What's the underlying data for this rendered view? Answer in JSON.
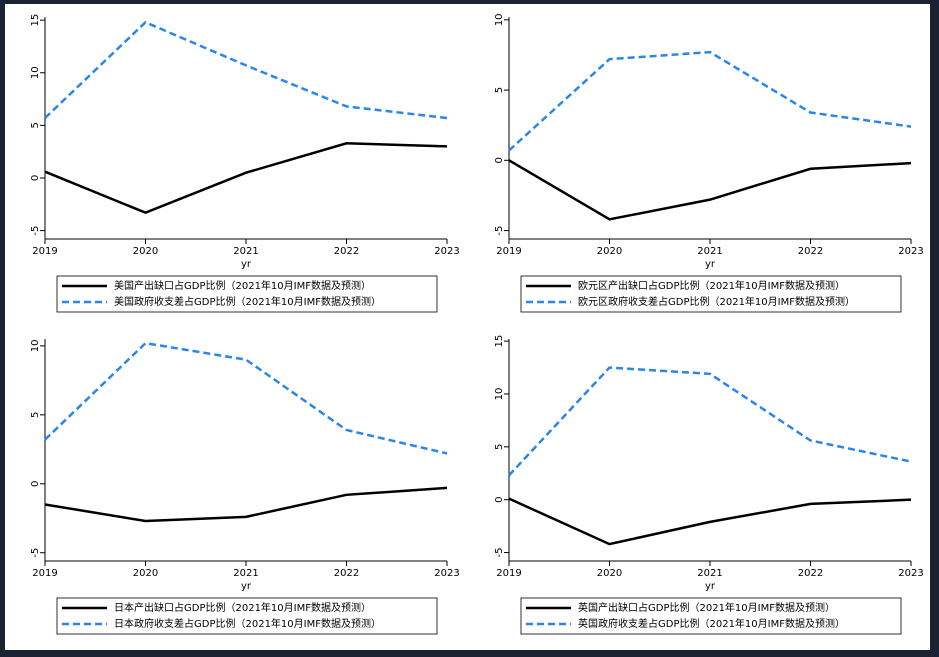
{
  "chart_data": [
    {
      "type": "line",
      "x": [
        2019,
        2020,
        2021,
        2022,
        2023
      ],
      "xlim": [
        2019,
        2023
      ],
      "xticks": [
        2019,
        2020,
        2021,
        2022,
        2023
      ],
      "xlabel": "yr",
      "ylim": [
        -5.8,
        15.3
      ],
      "yticks": [
        -5,
        0,
        5,
        10,
        15
      ],
      "series": [
        {
          "name": "美国产出缺口占GDP比例（2021年10月IMF数据及预测）",
          "color": "#000000",
          "dash": false,
          "values": [
            0.6,
            -3.3,
            0.5,
            3.3,
            3.0
          ]
        },
        {
          "name": "美国政府收支差占GDP比例（2021年10月IMF数据及预测）",
          "color": "#2a86e8",
          "dash": true,
          "values": [
            5.7,
            14.8,
            10.7,
            6.8,
            5.7
          ]
        }
      ]
    },
    {
      "type": "line",
      "x": [
        2019,
        2020,
        2021,
        2022,
        2023
      ],
      "xlim": [
        2019,
        2023
      ],
      "xticks": [
        2019,
        2020,
        2021,
        2022,
        2023
      ],
      "xlabel": "yr",
      "ylim": [
        -5.6,
        10.2
      ],
      "yticks": [
        -5,
        0,
        5,
        10
      ],
      "series": [
        {
          "name": "欧元区产出缺口占GDP比例（2021年10月IMF数据及预测）",
          "color": "#000000",
          "dash": false,
          "values": [
            0.0,
            -4.2,
            -2.8,
            -0.6,
            -0.2
          ]
        },
        {
          "name": "欧元区政府收支差占GDP比例（2021年10月IMF数据及预测）",
          "color": "#2a86e8",
          "dash": true,
          "values": [
            0.7,
            7.2,
            7.7,
            3.4,
            2.4
          ]
        }
      ]
    },
    {
      "type": "line",
      "x": [
        2019,
        2020,
        2021,
        2022,
        2023
      ],
      "xlim": [
        2019,
        2023
      ],
      "xticks": [
        2019,
        2020,
        2021,
        2022,
        2023
      ],
      "xlabel": "yr",
      "ylim": [
        -5.6,
        10.5
      ],
      "yticks": [
        -5,
        0,
        5,
        10
      ],
      "series": [
        {
          "name": "日本产出缺口占GDP比例（2021年10月IMF数据及预测）",
          "color": "#000000",
          "dash": false,
          "values": [
            -1.5,
            -2.7,
            -2.4,
            -0.8,
            -0.3
          ]
        },
        {
          "name": "日本政府收支差占GDP比例（2021年10月IMF数据及预测）",
          "color": "#2a86e8",
          "dash": true,
          "values": [
            3.2,
            10.2,
            9.0,
            3.9,
            2.2
          ]
        }
      ]
    },
    {
      "type": "line",
      "x": [
        2019,
        2020,
        2021,
        2022,
        2023
      ],
      "xlim": [
        2019,
        2023
      ],
      "xticks": [
        2019,
        2020,
        2021,
        2022,
        2023
      ],
      "xlabel": "yr",
      "ylim": [
        -5.8,
        15.2
      ],
      "yticks": [
        -5,
        0,
        5,
        10,
        15
      ],
      "series": [
        {
          "name": "英国产出缺口占GDP比例（2021年10月IMF数据及预测）",
          "color": "#000000",
          "dash": false,
          "values": [
            0.1,
            -4.2,
            -2.1,
            -0.4,
            0.0
          ]
        },
        {
          "name": "英国政府收支差占GDP比例（2021年10月IMF数据及预测）",
          "color": "#2a86e8",
          "dash": true,
          "values": [
            2.3,
            12.5,
            11.9,
            5.6,
            3.6
          ]
        }
      ]
    }
  ]
}
